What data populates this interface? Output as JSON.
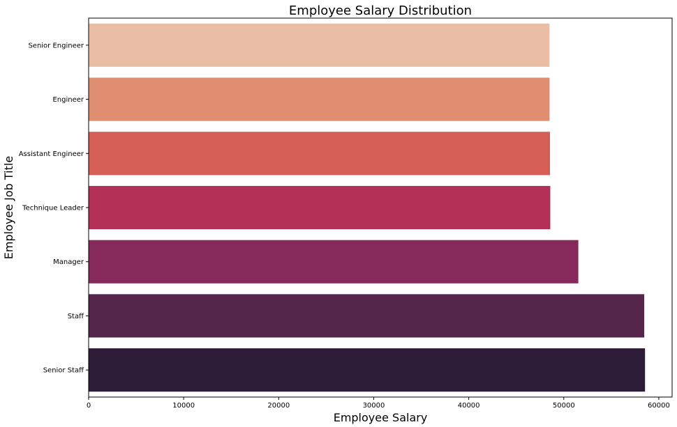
{
  "chart_data": {
    "type": "bar",
    "orientation": "horizontal",
    "title": "Employee Salary Distribution",
    "xlabel": "Employee Salary",
    "ylabel": "Employee Job Title",
    "categories": [
      "Senior Engineer",
      "Engineer",
      "Assistant Engineer",
      "Technique Leader",
      "Manager",
      "Staff",
      "Senior Staff"
    ],
    "values": [
      48500,
      48500,
      48550,
      48580,
      51530,
      58470,
      58550
    ],
    "colors": [
      "#e9bea4",
      "#e08e71",
      "#d55e57",
      "#b43056",
      "#862a5b",
      "#55264c",
      "#2d1c37"
    ],
    "xlim": [
      0,
      61400
    ],
    "xticks": [
      0,
      10000,
      20000,
      30000,
      40000,
      50000,
      60000
    ],
    "grid": false,
    "legend": "none"
  }
}
